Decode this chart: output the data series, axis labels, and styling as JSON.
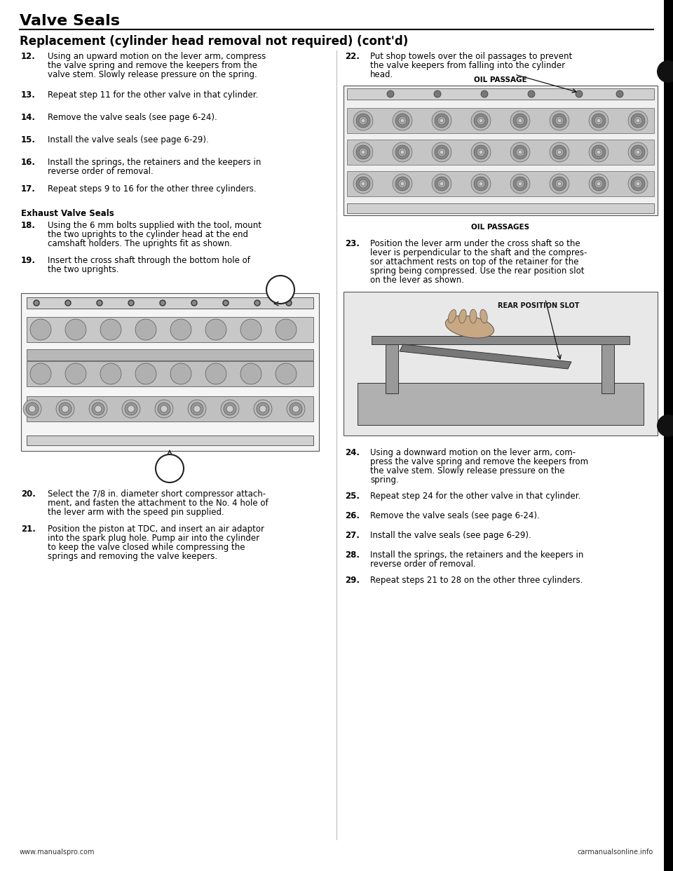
{
  "title": "Valve Seals",
  "subtitle": "Replacement (cylinder head removal not required) (cont’d)",
  "bg_color": "#ffffff",
  "text_color": "#000000",
  "footer_left": "www.manualspro.com",
  "footer_right": "carmanualsonline.info"
}
